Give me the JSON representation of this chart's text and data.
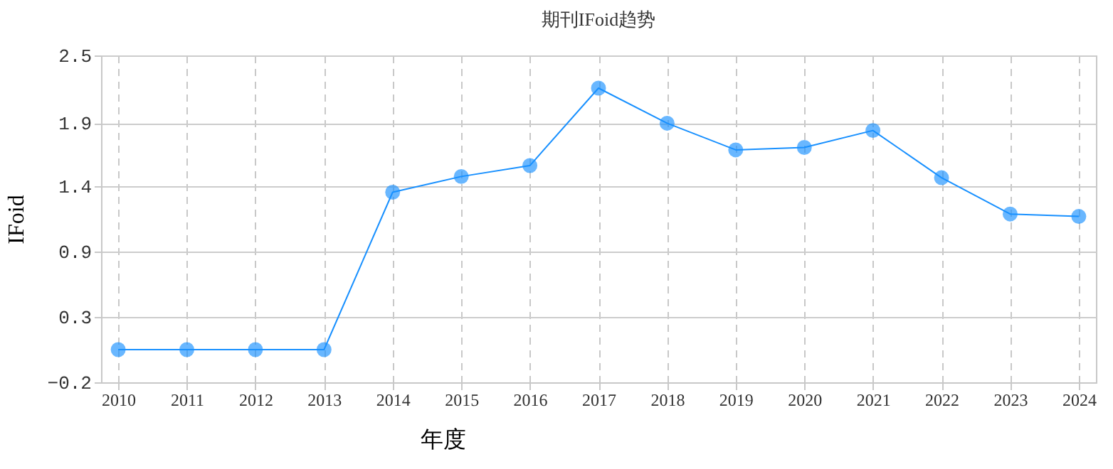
{
  "chart_data": {
    "type": "line",
    "title": "期刊IFoid趋势",
    "xlabel": "年度",
    "ylabel": "IFoid",
    "categories": [
      "2010",
      "2011",
      "2012",
      "2013",
      "2014",
      "2015",
      "2016",
      "2017",
      "2018",
      "2019",
      "2020",
      "2021",
      "2022",
      "2023",
      "2024"
    ],
    "series": [
      {
        "color": "#1890ff",
        "values": [
          0.07,
          0.07,
          0.07,
          0.07,
          1.37,
          1.5,
          1.59,
          2.23,
          1.94,
          1.72,
          1.74,
          1.88,
          1.49,
          1.19,
          1.17
        ]
      }
    ],
    "ylim": [
      -0.2,
      2.5
    ],
    "yticks": [
      -0.2,
      {
        "value": 0.34,
        "label": "0.3"
      },
      {
        "value": 0.88,
        "label": "0.9"
      },
      {
        "value": 1.42,
        "label": "1.4"
      },
      {
        "value": 1.94,
        "label": "1.9"
      },
      2.5
    ],
    "grid": true,
    "marker": "circle",
    "line_style": "solid"
  }
}
